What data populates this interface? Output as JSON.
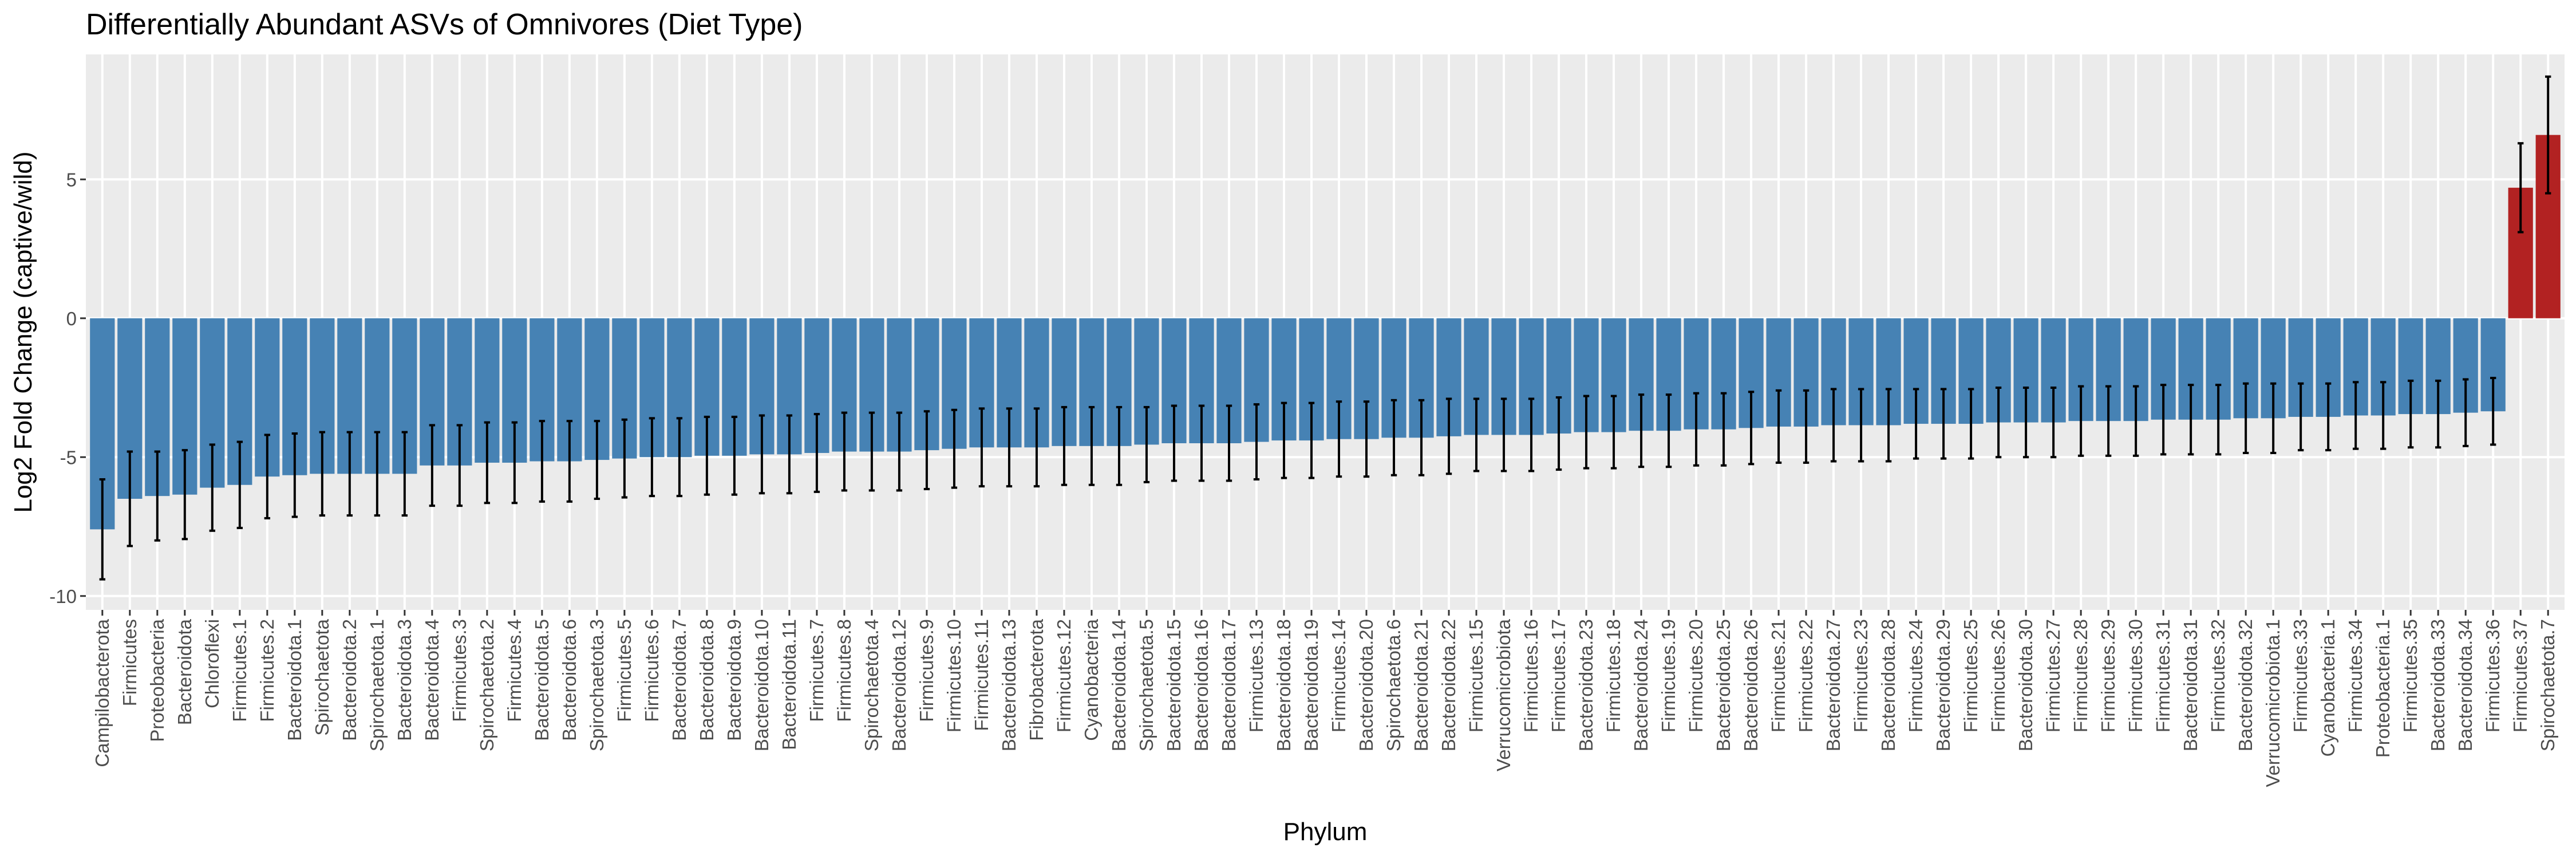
{
  "chart_data": {
    "type": "bar",
    "title": "Differentially Abundant ASVs of Omnivores (Diet Type)",
    "xlabel": "Phylum",
    "ylabel": "Log2 Fold Change (captive/wild)",
    "ylim": [
      -10.5,
      9.5
    ],
    "yticks": [
      -10,
      -5,
      0,
      5
    ],
    "grid": true,
    "legend": "none",
    "colors": {
      "negative": "#4682B4",
      "positive": "#B22222",
      "panel": "#EBEBEB",
      "grid": "#FFFFFF",
      "errorbar": "#000000"
    },
    "categories": [
      "Campilobacterota",
      "Firmicutes",
      "Proteobacteria",
      "Bacteroidota",
      "Chloroflexi",
      "Firmicutes.1",
      "Firmicutes.2",
      "Bacteroidota.1",
      "Spirochaetota",
      "Bacteroidota.2",
      "Spirochaetota.1",
      "Bacteroidota.3",
      "Bacteroidota.4",
      "Firmicutes.3",
      "Spirochaetota.2",
      "Firmicutes.4",
      "Bacteroidota.5",
      "Bacteroidota.6",
      "Spirochaetota.3",
      "Firmicutes.5",
      "Firmicutes.6",
      "Bacteroidota.7",
      "Bacteroidota.8",
      "Bacteroidota.9",
      "Bacteroidota.10",
      "Bacteroidota.11",
      "Firmicutes.7",
      "Firmicutes.8",
      "Spirochaetota.4",
      "Bacteroidota.12",
      "Firmicutes.9",
      "Firmicutes.10",
      "Firmicutes.11",
      "Bacteroidota.13",
      "Fibrobacterota",
      "Firmicutes.12",
      "Cyanobacteria",
      "Bacteroidota.14",
      "Spirochaetota.5",
      "Bacteroidota.15",
      "Bacteroidota.16",
      "Bacteroidota.17",
      "Firmicutes.13",
      "Bacteroidota.18",
      "Bacteroidota.19",
      "Firmicutes.14",
      "Bacteroidota.20",
      "Spirochaetota.6",
      "Bacteroidota.21",
      "Bacteroidota.22",
      "Firmicutes.15",
      "Verrucomicrobiota",
      "Firmicutes.16",
      "Firmicutes.17",
      "Bacteroidota.23",
      "Firmicutes.18",
      "Bacteroidota.24",
      "Firmicutes.19",
      "Firmicutes.20",
      "Bacteroidota.25",
      "Bacteroidota.26",
      "Firmicutes.21",
      "Firmicutes.22",
      "Bacteroidota.27",
      "Firmicutes.23",
      "Bacteroidota.28",
      "Firmicutes.24",
      "Bacteroidota.29",
      "Firmicutes.25",
      "Firmicutes.26",
      "Bacteroidota.30",
      "Firmicutes.27",
      "Firmicutes.28",
      "Firmicutes.29",
      "Firmicutes.30",
      "Firmicutes.31",
      "Bacteroidota.31",
      "Firmicutes.32",
      "Bacteroidota.32",
      "Verrucomicrobiota.1",
      "Firmicutes.33",
      "Cyanobacteria.1",
      "Firmicutes.34",
      "Proteobacteria.1",
      "Firmicutes.35",
      "Bacteroidota.33",
      "Bacteroidota.34",
      "Firmicutes.36",
      "Firmicutes.37",
      "Spirochaetota.7"
    ],
    "values": [
      -7.6,
      -6.5,
      -6.4,
      -6.35,
      -6.1,
      -6.0,
      -5.7,
      -5.65,
      -5.6,
      -5.6,
      -5.6,
      -5.6,
      -5.3,
      -5.3,
      -5.2,
      -5.2,
      -5.15,
      -5.15,
      -5.1,
      -5.05,
      -5.0,
      -5.0,
      -4.95,
      -4.95,
      -4.9,
      -4.9,
      -4.85,
      -4.8,
      -4.8,
      -4.8,
      -4.75,
      -4.7,
      -4.65,
      -4.65,
      -4.65,
      -4.6,
      -4.6,
      -4.6,
      -4.55,
      -4.5,
      -4.5,
      -4.5,
      -4.45,
      -4.4,
      -4.4,
      -4.35,
      -4.35,
      -4.3,
      -4.3,
      -4.25,
      -4.2,
      -4.2,
      -4.2,
      -4.15,
      -4.1,
      -4.1,
      -4.05,
      -4.05,
      -4.0,
      -4.0,
      -3.95,
      -3.9,
      -3.9,
      -3.85,
      -3.85,
      -3.85,
      -3.8,
      -3.8,
      -3.8,
      -3.75,
      -3.75,
      -3.75,
      -3.7,
      -3.7,
      -3.7,
      -3.65,
      -3.65,
      -3.65,
      -3.6,
      -3.6,
      -3.55,
      -3.55,
      -3.5,
      -3.5,
      -3.45,
      -3.45,
      -3.4,
      -3.35,
      4.7,
      6.6
    ],
    "error": [
      1.8,
      1.7,
      1.6,
      1.6,
      1.55,
      1.55,
      1.5,
      1.5,
      1.5,
      1.5,
      1.5,
      1.5,
      1.45,
      1.45,
      1.45,
      1.45,
      1.45,
      1.45,
      1.4,
      1.4,
      1.4,
      1.4,
      1.4,
      1.4,
      1.4,
      1.4,
      1.4,
      1.4,
      1.4,
      1.4,
      1.4,
      1.4,
      1.4,
      1.4,
      1.4,
      1.4,
      1.4,
      1.4,
      1.35,
      1.35,
      1.35,
      1.35,
      1.35,
      1.35,
      1.35,
      1.35,
      1.35,
      1.35,
      1.35,
      1.35,
      1.3,
      1.3,
      1.3,
      1.3,
      1.3,
      1.3,
      1.3,
      1.3,
      1.3,
      1.3,
      1.3,
      1.3,
      1.3,
      1.3,
      1.3,
      1.3,
      1.25,
      1.25,
      1.25,
      1.25,
      1.25,
      1.25,
      1.25,
      1.25,
      1.25,
      1.25,
      1.25,
      1.25,
      1.25,
      1.25,
      1.2,
      1.2,
      1.2,
      1.2,
      1.2,
      1.2,
      1.2,
      1.2,
      1.6,
      2.1
    ]
  }
}
